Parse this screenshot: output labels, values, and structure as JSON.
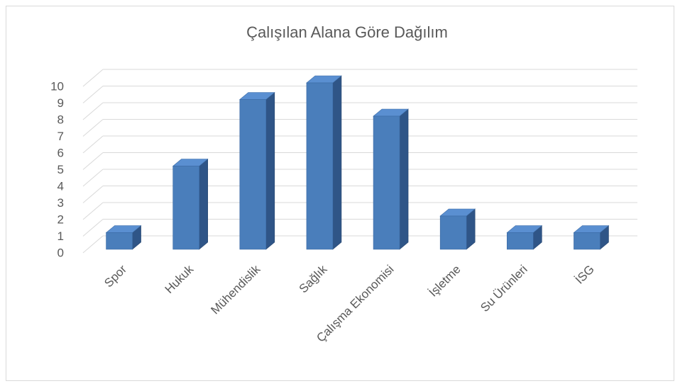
{
  "chart_data": {
    "type": "bar3d",
    "title": "Çalışılan Alana Göre Dağılım",
    "categories": [
      "Spor",
      "Hukuk",
      "Mühendislik",
      "Sağlık",
      "Çalışma Ekonomisi",
      "İşletme",
      "Su Ürünleri",
      "İSG"
    ],
    "values": [
      1,
      5,
      9,
      10,
      8,
      2,
      1,
      1
    ],
    "color": "#4a7ebb",
    "ylim": [
      0,
      10
    ],
    "yticks": [
      0,
      1,
      2,
      3,
      4,
      5,
      6,
      7,
      8,
      9,
      10
    ],
    "grid": true
  }
}
